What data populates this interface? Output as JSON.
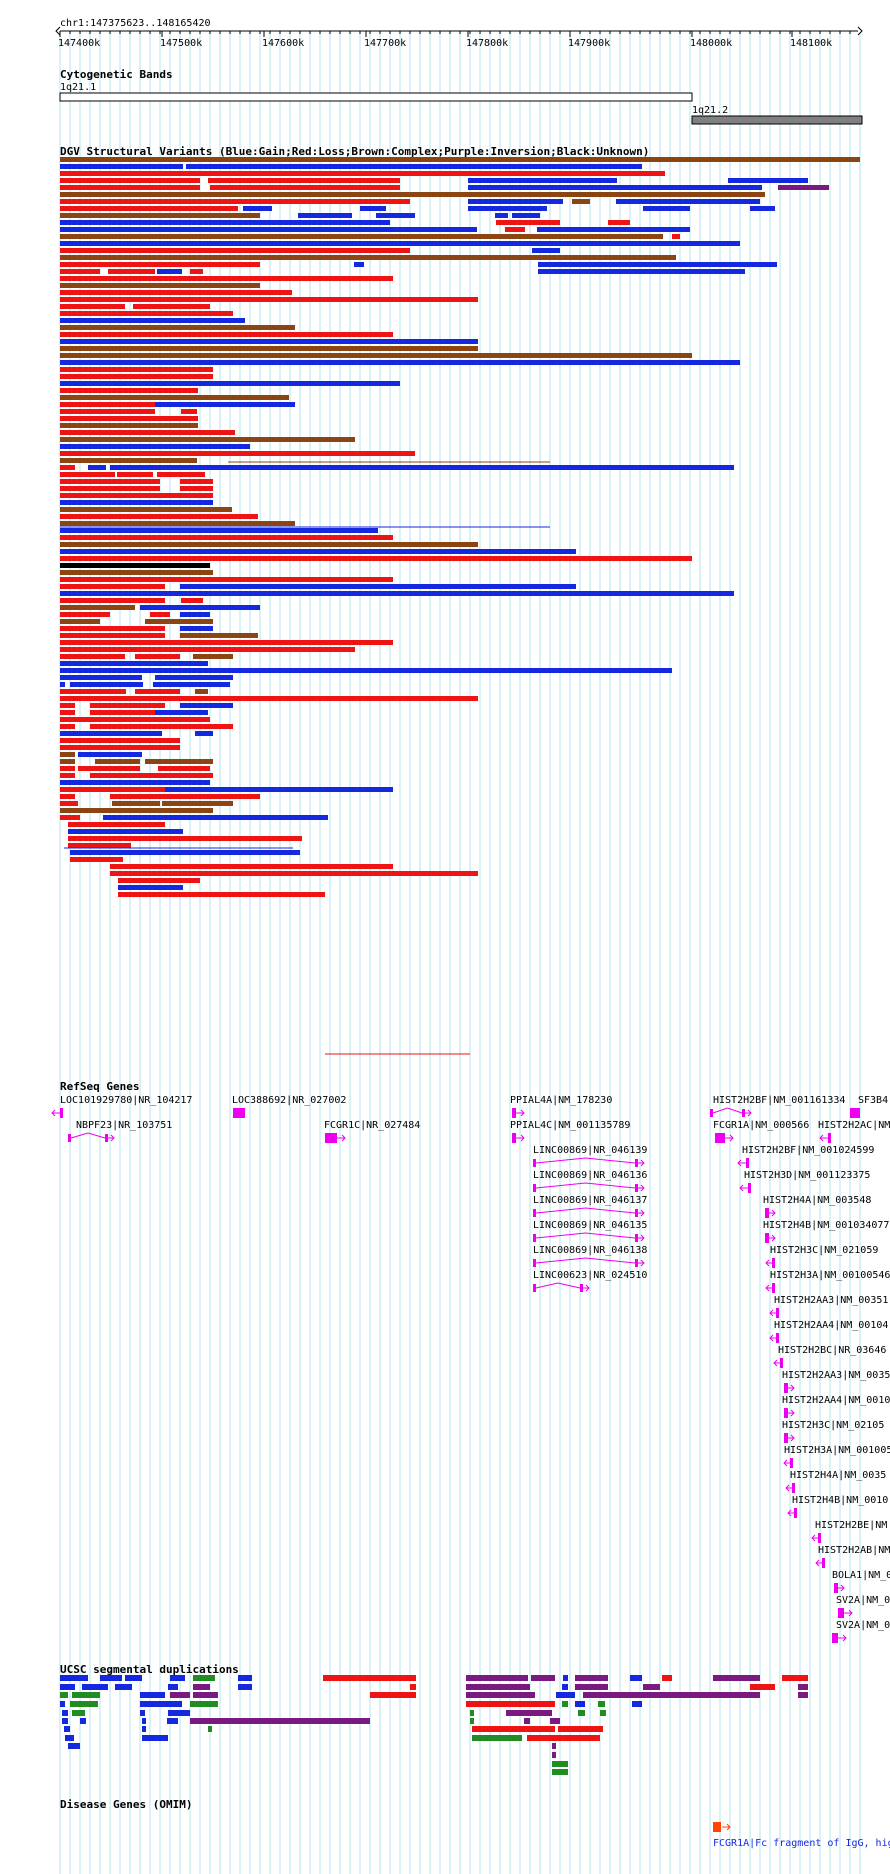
{
  "coordinate": "chr1:147375623..148165420",
  "ruler_ticks": [
    "147400k",
    "147500k",
    "147600k",
    "147700k",
    "147800k",
    "147900k",
    "148000k",
    "148100k"
  ],
  "tracks": {
    "cytoband": {
      "title": "Cytogenetic Bands",
      "bands": [
        "1q21.1",
        "1q21.2"
      ]
    },
    "dgv": {
      "title": "DGV Structural Variants (Blue:Gain;Red:Loss;Brown:Complex;Purple:Inversion;Black:Unknown)"
    },
    "refseq": {
      "title": "RefSeq Genes",
      "genes": [
        "LOC101929780|NR_104217",
        "NBPF23|NR_103751",
        "LOC388692|NR_027002",
        "FCGR1C|NR_027484",
        "PPIAL4A|NM_178230",
        "PPIAL4C|NM_001135789",
        "LINC00869|NR_046139",
        "LINC00869|NR_046136",
        "LINC00869|NR_046137",
        "LINC00869|NR_046135",
        "LINC00869|NR_046138",
        "LINC00623|NR_024510",
        "HIST2H2BF|NM_001161334",
        "SF3B4|",
        "FCGR1A|NM_000566",
        "HIST2H2AC|NM",
        "HIST2H2BF|NM_001024599",
        "HIST2H3D|NM_001123375",
        "HIST2H4A|NM_003548",
        "HIST2H4B|NM_001034077",
        "HIST2H3C|NM_021059",
        "HIST2H3A|NM_00100546",
        "HIST2H2AA3|NM_00351",
        "HIST2H2AA4|NM_00104",
        "HIST2H2BC|NR_03646",
        "HIST2H2AA3|NM_0035",
        "HIST2H2AA4|NM_0010",
        "HIST2H3C|NM_02105",
        "HIST2H3A|NM_001005",
        "HIST2H4A|NM_0035",
        "HIST2H4B|NM_0010",
        "HIST2H2BE|NM",
        "HIST2H2AB|NM",
        "BOLA1|NM_0",
        "SV2A|NM_0",
        "SV2A|NM_0"
      ]
    },
    "segdup": {
      "title": "UCSC segmental duplications"
    },
    "omim": {
      "title": "Disease Genes (OMIM)",
      "entry": "FCGR1A|Fc fragment of IgG, hig"
    }
  },
  "colors": {
    "gain": "#1428e0",
    "loss": "#ee1414",
    "complex": "#8b4513",
    "inversion": "#7a1a80",
    "unknown": "#000000",
    "gene": "#ee00ee",
    "grid": "#b0e4f0",
    "cytoband_dark": "#808080",
    "segdup_green": "#228b22",
    "omim": "#ff4500",
    "omim_text": "#1428e0"
  }
}
